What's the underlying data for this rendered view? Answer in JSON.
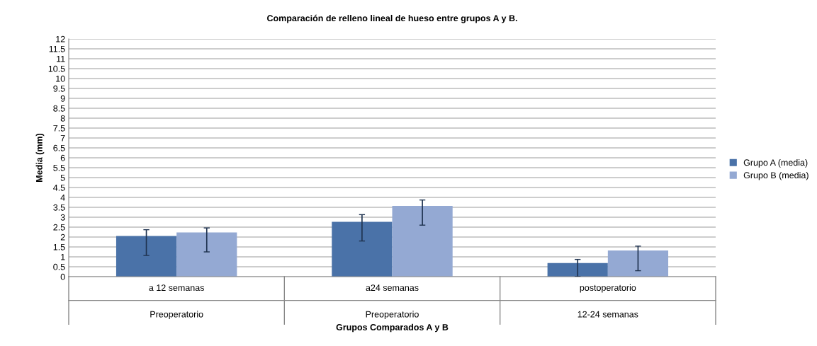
{
  "chart_data": {
    "type": "bar",
    "title": "Comparación de relleno lineal de hueso entre grupos A y B.",
    "xlabel": "Grupos Comparados A y B",
    "ylabel": "Media (mm)",
    "categories": [
      "a 12 semanas\nPreoperatorio",
      "a24 semanas\nPreoperatorio",
      "postoperatorio\n12-24 semanas"
    ],
    "series": [
      {
        "name": "Grupo A (media)",
        "color": "#4a72a8",
        "values": [
          2.05,
          2.77,
          0.69
        ],
        "errors": [
          [
            1.07,
            2.37
          ],
          [
            1.8,
            3.13
          ],
          [
            0,
            0.87
          ]
        ]
      },
      {
        "name": "Grupo B (media)",
        "color": "#94a9d3",
        "values": [
          2.23,
          3.57,
          1.32
        ],
        "errors": [
          [
            1.25,
            2.46
          ],
          [
            2.6,
            3.87
          ],
          [
            0.3,
            1.54
          ]
        ]
      }
    ],
    "ylim": [
      0,
      12
    ],
    "yticks": [
      0,
      0.5,
      1,
      1.5,
      2,
      2.5,
      3,
      3.5,
      4,
      4.5,
      5,
      5.5,
      6,
      6.5,
      7,
      7.5,
      8,
      8.5,
      9,
      9.5,
      10,
      10.5,
      11,
      11.5,
      12
    ],
    "grid": "y",
    "legend": "right"
  }
}
